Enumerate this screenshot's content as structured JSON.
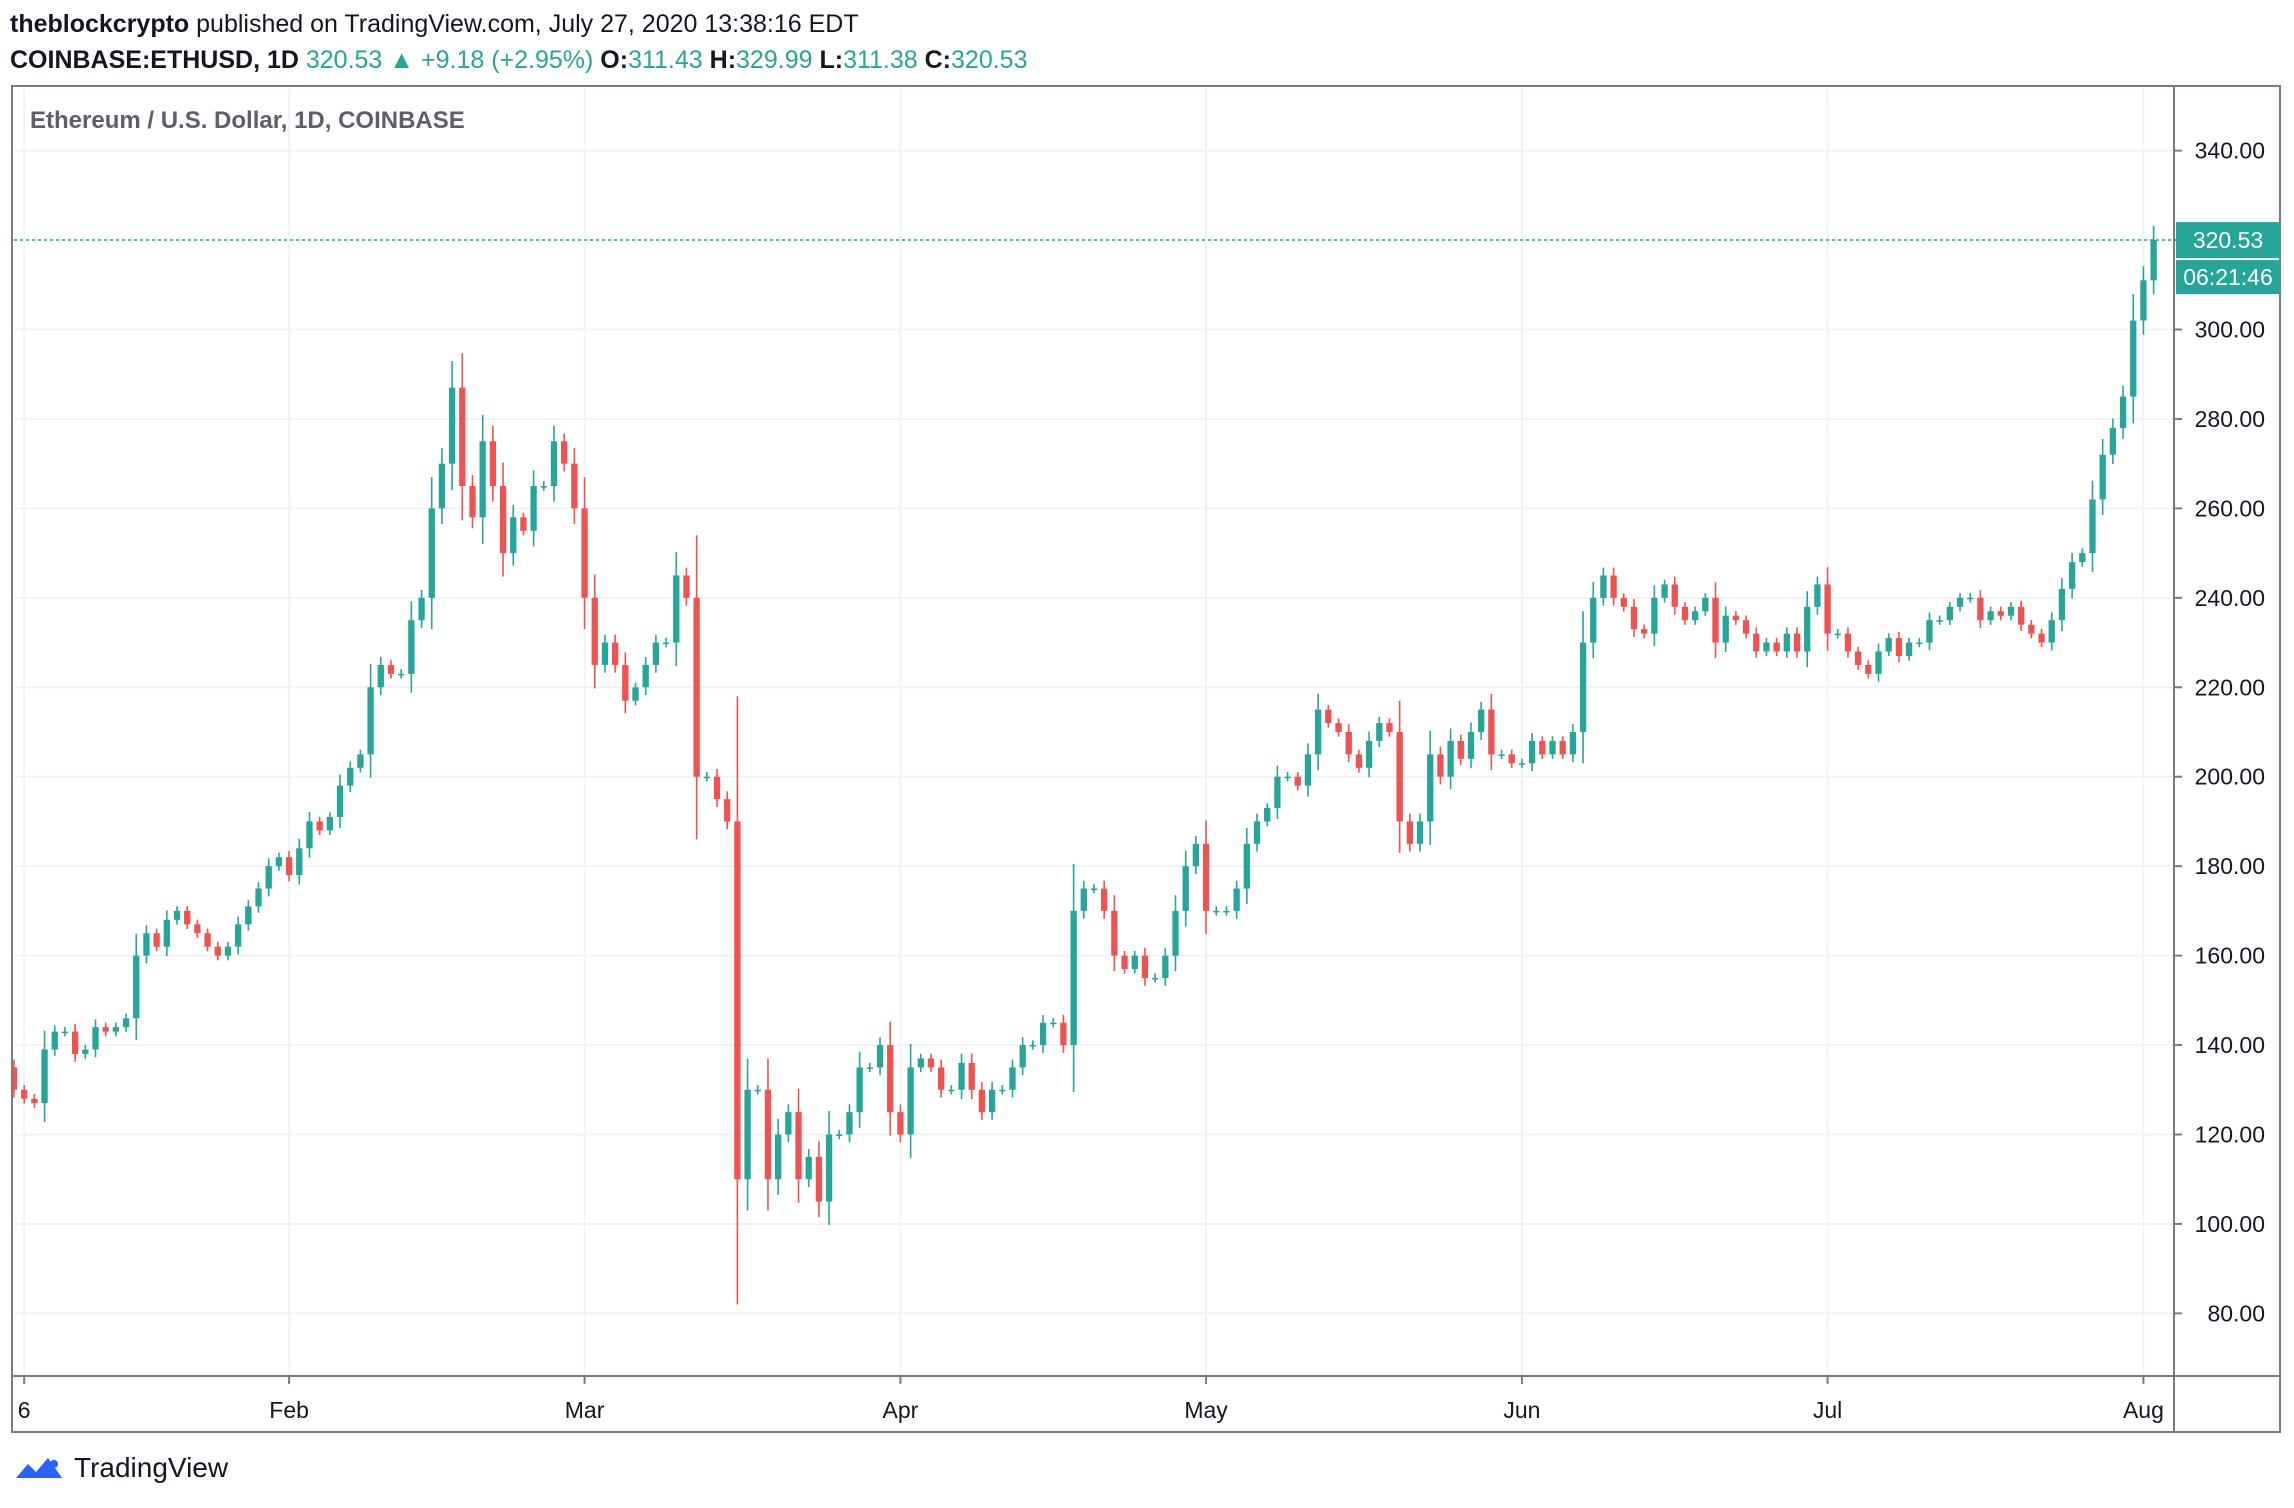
{
  "header": {
    "publisher": "theblockcrypto",
    "published_text": "published on TradingView.com, July 27, 2020 13:38:16 EDT",
    "symbol": "COINBASE:ETHUSD, 1D",
    "last": "320.53",
    "up_arrow": "▲",
    "change": "+9.18 (+2.95%)",
    "o_label": "O:",
    "o_value": "311.43",
    "h_label": "H:",
    "h_value": "329.99",
    "l_label": "L:",
    "l_value": "311.38",
    "c_label": "C:",
    "c_value": "320.53"
  },
  "footer": {
    "brand": "TradingView",
    "logo_icon": "tradingview-logo-icon"
  },
  "colors": {
    "up": "#26a69a",
    "down": "#ef5350",
    "grid": "#f0f3fa",
    "border": "#787b86",
    "text": "#131722"
  },
  "chart_data": {
    "type": "candlestick",
    "title": "Ethereum / U.S. Dollar, 1D, COINBASE",
    "last_price_label": "320.53",
    "countdown_label": "06:21:46",
    "y_ticks": [
      "340.00",
      "320.00",
      "300.00",
      "280.00",
      "260.00",
      "240.00",
      "220.00",
      "200.00",
      "180.00",
      "160.00",
      "140.00",
      "120.00",
      "100.00",
      "80.00"
    ],
    "y_tick_values": [
      340,
      320,
      300,
      280,
      260,
      240,
      220,
      200,
      180,
      160,
      140,
      120,
      100,
      80
    ],
    "ylim": [
      66,
      354
    ],
    "x_ticks": [
      {
        "label": "6",
        "date": "2020-01-06"
      },
      {
        "label": "Feb",
        "date": "2020-02-01"
      },
      {
        "label": "Mar",
        "date": "2020-03-01"
      },
      {
        "label": "Apr",
        "date": "2020-04-01"
      },
      {
        "label": "May",
        "date": "2020-05-01"
      },
      {
        "label": "Jun",
        "date": "2020-06-01"
      },
      {
        "label": "Jul",
        "date": "2020-07-01"
      },
      {
        "label": "Aug",
        "date": "2020-08-01"
      }
    ],
    "xlim": [
      "2020-01-05",
      "2020-08-04"
    ],
    "closes": {
      "start_date": "2020-01-05",
      "first_open": 135,
      "values": [
        130,
        128,
        127,
        139,
        143,
        143,
        138,
        139,
        144,
        143,
        144,
        146,
        160,
        165,
        162,
        168,
        170,
        167,
        165,
        162,
        160,
        162,
        167,
        171,
        175,
        180,
        182,
        178,
        184,
        190,
        188,
        191,
        198,
        202,
        205,
        220,
        225,
        223,
        223,
        235,
        240,
        260,
        270,
        287,
        265,
        258,
        275,
        265,
        250,
        258,
        255,
        265,
        265,
        275,
        270,
        260,
        240,
        225,
        230,
        225,
        217,
        220,
        225,
        230,
        230,
        245,
        240,
        200,
        200,
        195,
        190,
        110,
        130,
        130,
        110,
        120,
        125,
        110,
        115,
        105,
        120,
        120,
        125,
        135,
        135,
        140,
        125,
        120,
        135,
        137,
        135,
        130,
        130,
        136,
        130,
        125,
        130,
        130,
        135,
        140,
        140,
        145,
        145,
        140,
        170,
        175,
        175,
        170,
        160,
        157,
        160,
        155,
        155,
        160,
        170,
        180,
        185,
        170,
        170,
        170,
        175,
        185,
        190,
        193,
        200,
        200,
        198,
        205,
        215,
        212,
        210,
        205,
        202,
        208,
        212,
        210,
        190,
        185,
        190,
        205,
        200,
        208,
        204,
        210,
        215,
        205,
        205,
        203,
        203,
        208,
        205,
        208,
        205,
        210,
        230,
        240,
        245,
        240,
        238,
        233,
        232,
        240,
        243,
        238,
        235,
        237,
        240,
        230,
        236,
        235,
        232,
        228,
        230,
        228,
        232,
        228,
        238,
        243,
        232,
        232,
        228,
        225,
        223,
        228,
        231,
        227,
        230,
        230,
        235,
        235,
        238,
        240,
        240,
        235,
        237,
        236,
        238,
        234,
        232,
        230,
        235,
        242,
        248,
        250,
        262,
        272,
        278,
        285,
        302,
        311,
        320
      ]
    }
  }
}
